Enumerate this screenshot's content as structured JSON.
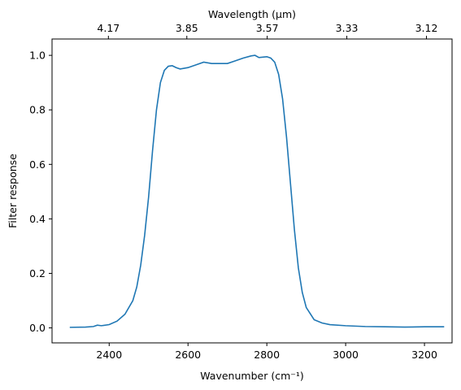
{
  "chart_data": {
    "type": "line",
    "title": "",
    "xlabel": "Wavenumber (cm⁻¹)",
    "ylabel": "Filter response",
    "top_xlabel": "Wavelength (μm)",
    "xlim": [
      2255,
      3270
    ],
    "ylim": [
      -0.055,
      1.06
    ],
    "grid": false,
    "colors": {
      "line": "#1f77b4",
      "axes": "#000000",
      "background": "#ffffff"
    },
    "x_ticks": [
      {
        "value": 2400,
        "label": "2400"
      },
      {
        "value": 2600,
        "label": "2600"
      },
      {
        "value": 2800,
        "label": "2800"
      },
      {
        "value": 3000,
        "label": "3000"
      },
      {
        "value": 3200,
        "label": "3200"
      }
    ],
    "y_ticks": [
      {
        "value": 0.0,
        "label": "0.0"
      },
      {
        "value": 0.2,
        "label": "0.2"
      },
      {
        "value": 0.4,
        "label": "0.4"
      },
      {
        "value": 0.6,
        "label": "0.6"
      },
      {
        "value": 0.8,
        "label": "0.8"
      },
      {
        "value": 1.0,
        "label": "1.0"
      }
    ],
    "top_ticks": [
      {
        "value": 2398,
        "label": "4.17"
      },
      {
        "value": 2597,
        "label": "3.85"
      },
      {
        "value": 2801,
        "label": "3.57"
      },
      {
        "value": 3003,
        "label": "3.33"
      },
      {
        "value": 3205,
        "label": "3.12"
      }
    ],
    "series": [
      {
        "x": [
          2300,
          2340,
          2360,
          2370,
          2380,
          2400,
          2420,
          2440,
          2460,
          2470,
          2480,
          2490,
          2500,
          2510,
          2520,
          2530,
          2540,
          2550,
          2560,
          2570,
          2580,
          2600,
          2620,
          2640,
          2660,
          2680,
          2700,
          2720,
          2740,
          2760,
          2770,
          2780,
          2800,
          2810,
          2820,
          2830,
          2840,
          2850,
          2860,
          2870,
          2880,
          2890,
          2900,
          2920,
          2940,
          2960,
          3000,
          3050,
          3100,
          3150,
          3200,
          3250
        ],
        "y": [
          0.002,
          0.003,
          0.005,
          0.01,
          0.008,
          0.012,
          0.025,
          0.05,
          0.1,
          0.15,
          0.23,
          0.34,
          0.48,
          0.65,
          0.8,
          0.9,
          0.945,
          0.96,
          0.962,
          0.955,
          0.95,
          0.955,
          0.965,
          0.975,
          0.97,
          0.97,
          0.97,
          0.98,
          0.99,
          0.998,
          1.0,
          0.992,
          0.995,
          0.99,
          0.975,
          0.93,
          0.84,
          0.7,
          0.53,
          0.36,
          0.22,
          0.13,
          0.075,
          0.03,
          0.018,
          0.012,
          0.008,
          0.005,
          0.004,
          0.003,
          0.004,
          0.004
        ]
      }
    ]
  }
}
